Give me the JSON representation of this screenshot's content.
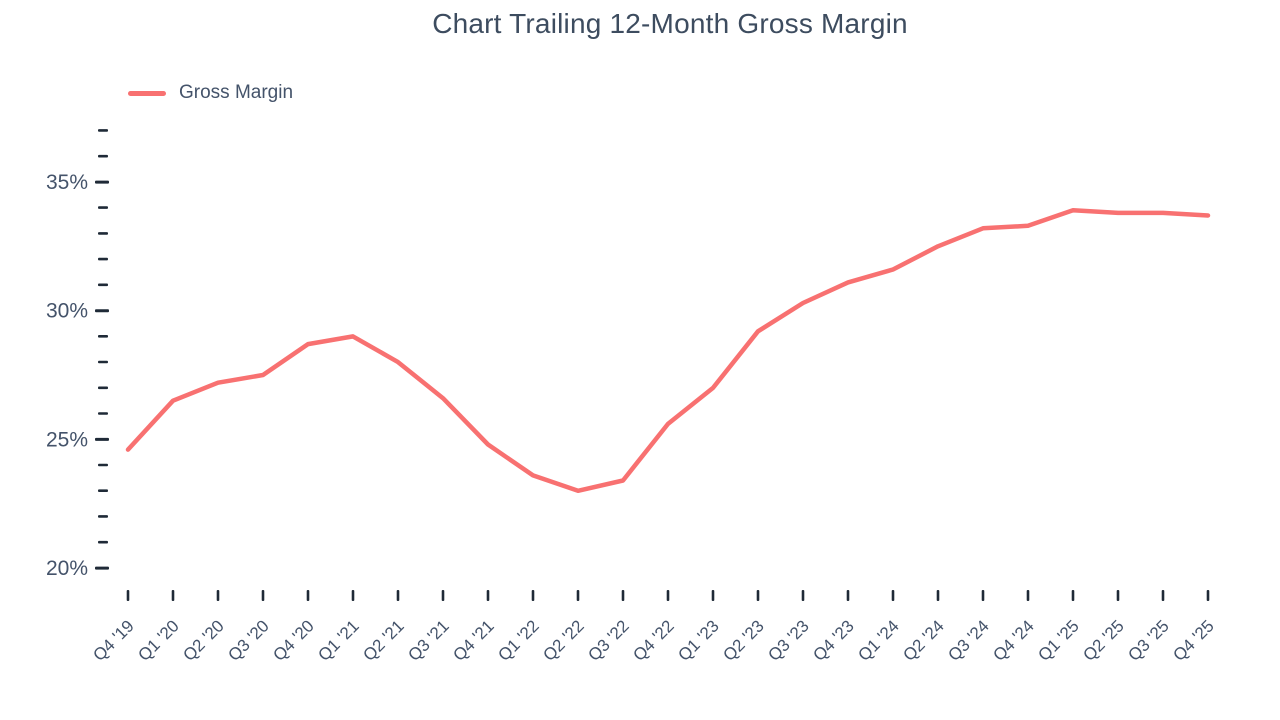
{
  "title": "Chart Trailing 12-Month Gross Margin",
  "legend": {
    "label": "Gross Margin"
  },
  "colors": {
    "line": "#f87171",
    "axis_text": "#44536a",
    "tick": "#1f2a37",
    "title_text": "#3d4c5f"
  },
  "chart_data": {
    "type": "line",
    "title": "Chart Trailing 12-Month Gross Margin",
    "categories": [
      "Q4 '19",
      "Q1 '20",
      "Q2 '20",
      "Q3 '20",
      "Q4 '20",
      "Q1 '21",
      "Q2 '21",
      "Q3 '21",
      "Q4 '21",
      "Q1 '22",
      "Q2 '22",
      "Q3 '22",
      "Q4 '22",
      "Q1 '23",
      "Q2 '23",
      "Q3 '23",
      "Q4 '23",
      "Q1 '24",
      "Q2 '24",
      "Q3 '24",
      "Q4 '24",
      "Q1 '25",
      "Q2 '25",
      "Q3 '25",
      "Q4 '25"
    ],
    "series": [
      {
        "name": "Gross Margin",
        "values": [
          24.6,
          26.5,
          27.2,
          27.5,
          28.7,
          29.0,
          28.0,
          26.6,
          24.8,
          23.6,
          23.0,
          23.4,
          25.6,
          27.0,
          29.2,
          30.3,
          31.1,
          31.6,
          32.5,
          33.2,
          33.3,
          33.9,
          33.8,
          33.8,
          33.7
        ]
      }
    ],
    "unit": "%",
    "ylim": [
      20,
      37
    ],
    "y_major_ticks": [
      20,
      25,
      30,
      35
    ],
    "y_minor_step": 1,
    "y_tick_labels": [
      "20%",
      "25%",
      "30%",
      "35%"
    ],
    "xlabel": "",
    "ylabel": "",
    "grid": false,
    "legend_position": "top-left"
  }
}
